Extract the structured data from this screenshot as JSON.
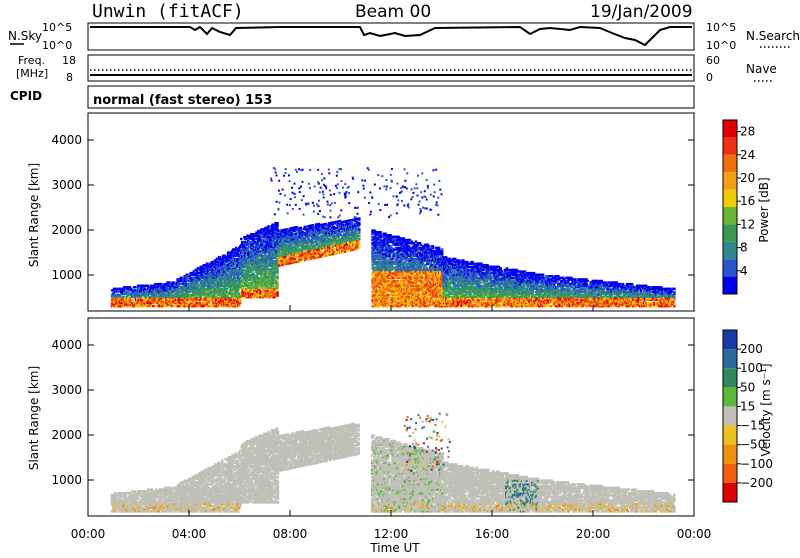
{
  "header": {
    "station": "Unwin (fitACF)",
    "beam": "Beam 00",
    "date": "19/Jan/2009"
  },
  "panels": {
    "nsky": {
      "left_label": "N.Sky",
      "right_label": "N.Search",
      "left_ticks": [
        "10^5",
        "10^0"
      ],
      "right_ticks": [
        "10^5",
        "10^0"
      ]
    },
    "freq": {
      "left_label_top": "Freq.",
      "left_label_bottom": "[MHz]",
      "right_label": "Nave",
      "left_ticks": [
        "18",
        "8"
      ],
      "right_ticks": [
        "60",
        "0"
      ]
    },
    "cpid": {
      "label": "CPID",
      "value": "normal (fast stereo) 153"
    }
  },
  "chart_data": [
    {
      "type": "heatmap",
      "name": "power",
      "ylabel": "Slant Range [km]",
      "xlabel": "",
      "yticks": [
        "1000",
        "2000",
        "3000",
        "4000"
      ],
      "ylim": [
        200,
        4600
      ],
      "xlim": [
        0,
        24
      ],
      "colorbar": {
        "label": "Power [dB]",
        "ticks": [
          "4",
          "8",
          "12",
          "16",
          "20",
          "24",
          "28"
        ],
        "colors": [
          "#0000ee",
          "#2a55cc",
          "#2e8a8a",
          "#3a9a50",
          "#6ab63a",
          "#f0cc00",
          "#f0a010",
          "#f07010",
          "#f03010",
          "#e00000"
        ]
      }
    },
    {
      "type": "heatmap",
      "name": "velocity",
      "ylabel": "Slant Range [km]",
      "xlabel": "Time UT",
      "xticks": [
        "00:00",
        "04:00",
        "08:00",
        "12:00",
        "16:00",
        "20:00",
        "00:00"
      ],
      "yticks": [
        "1000",
        "2000",
        "3000",
        "4000"
      ],
      "ylim": [
        200,
        4600
      ],
      "xlim": [
        0,
        24
      ],
      "colorbar": {
        "label": "Velocity [m s⁻¹]",
        "ticks": [
          "200",
          "100",
          "50",
          "15",
          "−15",
          "−50",
          "−100",
          "−200"
        ],
        "colors": [
          "#1a3aa8",
          "#2a6aa0",
          "#2e8a5a",
          "#5ab83a",
          "#c0c0b8",
          "#f0c020",
          "#f09010",
          "#f06010",
          "#e00000"
        ]
      }
    }
  ]
}
